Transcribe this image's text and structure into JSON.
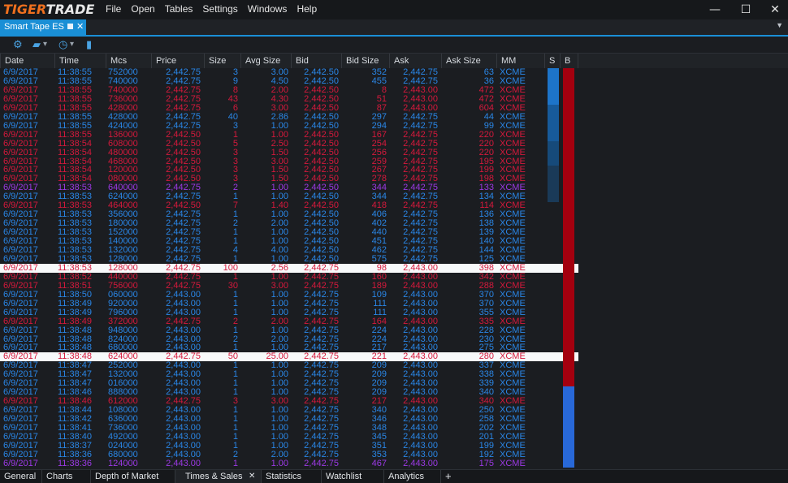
{
  "app": {
    "logo_left": "TIGER",
    "logo_right": "TRADE",
    "menu": [
      "File",
      "Open",
      "Tables",
      "Settings",
      "Windows",
      "Help"
    ],
    "window_controls": {
      "minimize": "—",
      "maximize": "☐",
      "close": "✕"
    },
    "brand_color": "#f0701e",
    "accent_color": "#1a8fd6"
  },
  "doc_tab": {
    "label": "Smart Tape ES",
    "close": "✕",
    "overflow": "▼"
  },
  "toolbar": {
    "icons": [
      "gear-icon",
      "folder-icon",
      "clock-icon",
      "trash-icon"
    ],
    "gear": "⚙",
    "folder": "▰",
    "clock": "◷",
    "trash": "▮",
    "dropdown": "▾"
  },
  "columns": [
    "Date",
    "Time",
    "Mcs",
    "Price",
    "Size",
    "Avg Size",
    "Bid",
    "Bid Size",
    "Ask",
    "Ask Size",
    "MM",
    "S",
    "B"
  ],
  "colors": {
    "buy": "#2a86e6",
    "sell": "#d5193c",
    "neutral": "#9b39e4",
    "highlight_row": "#f7f9fa"
  },
  "rows": [
    [
      "6/9/2017",
      "11:38:55",
      "752000",
      "2,442.75",
      "3",
      "3.00",
      "2,442.50",
      "352",
      "2,442.75",
      "63",
      "XCME",
      "b"
    ],
    [
      "6/9/2017",
      "11:38:55",
      "740000",
      "2,442.75",
      "9",
      "4.50",
      "2,442.50",
      "455",
      "2,442.75",
      "36",
      "XCME",
      "b"
    ],
    [
      "6/9/2017",
      "11:38:55",
      "740000",
      "2,442.75",
      "8",
      "2.00",
      "2,442.50",
      "8",
      "2,443.00",
      "472",
      "XCME",
      "s"
    ],
    [
      "6/9/2017",
      "11:38:55",
      "736000",
      "2,442.75",
      "43",
      "4.30",
      "2,442.50",
      "51",
      "2,443.00",
      "472",
      "XCME",
      "s"
    ],
    [
      "6/9/2017",
      "11:38:55",
      "428000",
      "2,442.75",
      "6",
      "3.00",
      "2,442.50",
      "87",
      "2,443.00",
      "604",
      "XCME",
      "s"
    ],
    [
      "6/9/2017",
      "11:38:55",
      "428000",
      "2,442.75",
      "40",
      "2.86",
      "2,442.50",
      "297",
      "2,442.75",
      "44",
      "XCME",
      "b"
    ],
    [
      "6/9/2017",
      "11:38:55",
      "424000",
      "2,442.75",
      "3",
      "1.00",
      "2,442.50",
      "294",
      "2,442.75",
      "99",
      "XCME",
      "b"
    ],
    [
      "6/9/2017",
      "11:38:55",
      "136000",
      "2,442.50",
      "1",
      "1.00",
      "2,442.50",
      "167",
      "2,442.75",
      "220",
      "XCME",
      "s"
    ],
    [
      "6/9/2017",
      "11:38:54",
      "608000",
      "2,442.50",
      "5",
      "2.50",
      "2,442.50",
      "254",
      "2,442.75",
      "220",
      "XCME",
      "s"
    ],
    [
      "6/9/2017",
      "11:38:54",
      "480000",
      "2,442.50",
      "3",
      "1.50",
      "2,442.50",
      "256",
      "2,442.75",
      "220",
      "XCME",
      "s"
    ],
    [
      "6/9/2017",
      "11:38:54",
      "468000",
      "2,442.50",
      "3",
      "3.00",
      "2,442.50",
      "259",
      "2,442.75",
      "195",
      "XCME",
      "s"
    ],
    [
      "6/9/2017",
      "11:38:54",
      "120000",
      "2,442.50",
      "3",
      "1.50",
      "2,442.50",
      "267",
      "2,442.75",
      "199",
      "XCME",
      "s"
    ],
    [
      "6/9/2017",
      "11:38:54",
      "080000",
      "2,442.50",
      "3",
      "1.50",
      "2,442.50",
      "278",
      "2,442.75",
      "198",
      "XCME",
      "s"
    ],
    [
      "6/9/2017",
      "11:38:53",
      "640000",
      "2,442.75",
      "2",
      "1.00",
      "2,442.50",
      "344",
      "2,442.75",
      "133",
      "XCME",
      "n"
    ],
    [
      "6/9/2017",
      "11:38:53",
      "624000",
      "2,442.75",
      "1",
      "1.00",
      "2,442.50",
      "344",
      "2,442.75",
      "134",
      "XCME",
      "b"
    ],
    [
      "6/9/2017",
      "11:38:53",
      "464000",
      "2,442.50",
      "7",
      "1.40",
      "2,442.50",
      "418",
      "2,442.75",
      "114",
      "XCME",
      "s"
    ],
    [
      "6/9/2017",
      "11:38:53",
      "356000",
      "2,442.75",
      "1",
      "1.00",
      "2,442.50",
      "406",
      "2,442.75",
      "136",
      "XCME",
      "b"
    ],
    [
      "6/9/2017",
      "11:38:53",
      "180000",
      "2,442.75",
      "2",
      "2.00",
      "2,442.50",
      "402",
      "2,442.75",
      "138",
      "XCME",
      "b"
    ],
    [
      "6/9/2017",
      "11:38:53",
      "152000",
      "2,442.75",
      "1",
      "1.00",
      "2,442.50",
      "440",
      "2,442.75",
      "139",
      "XCME",
      "b"
    ],
    [
      "6/9/2017",
      "11:38:53",
      "140000",
      "2,442.75",
      "1",
      "1.00",
      "2,442.50",
      "451",
      "2,442.75",
      "140",
      "XCME",
      "b"
    ],
    [
      "6/9/2017",
      "11:38:53",
      "132000",
      "2,442.75",
      "4",
      "4.00",
      "2,442.50",
      "462",
      "2,442.75",
      "144",
      "XCME",
      "b"
    ],
    [
      "6/9/2017",
      "11:38:53",
      "128000",
      "2,442.75",
      "1",
      "1.00",
      "2,442.50",
      "575",
      "2,442.75",
      "125",
      "XCME",
      "b"
    ],
    [
      "6/9/2017",
      "11:38:53",
      "128000",
      "2,442.75",
      "100",
      "2.56",
      "2,442.75",
      "98",
      "2,443.00",
      "398",
      "XCME",
      "hl"
    ],
    [
      "6/9/2017",
      "11:38:52",
      "440000",
      "2,442.75",
      "1",
      "1.00",
      "2,442.75",
      "160",
      "2,443.00",
      "342",
      "XCME",
      "s"
    ],
    [
      "6/9/2017",
      "11:38:51",
      "756000",
      "2,442.75",
      "30",
      "3.00",
      "2,442.75",
      "189",
      "2,443.00",
      "288",
      "XCME",
      "s"
    ],
    [
      "6/9/2017",
      "11:38:50",
      "060000",
      "2,443.00",
      "1",
      "1.00",
      "2,442.75",
      "109",
      "2,443.00",
      "370",
      "XCME",
      "b"
    ],
    [
      "6/9/2017",
      "11:38:49",
      "920000",
      "2,443.00",
      "1",
      "1.00",
      "2,442.75",
      "111",
      "2,443.00",
      "370",
      "XCME",
      "b"
    ],
    [
      "6/9/2017",
      "11:38:49",
      "796000",
      "2,443.00",
      "1",
      "1.00",
      "2,442.75",
      "111",
      "2,443.00",
      "355",
      "XCME",
      "b"
    ],
    [
      "6/9/2017",
      "11:38:49",
      "372000",
      "2,442.75",
      "2",
      "2.00",
      "2,442.75",
      "164",
      "2,443.00",
      "335",
      "XCME",
      "s"
    ],
    [
      "6/9/2017",
      "11:38:48",
      "948000",
      "2,443.00",
      "1",
      "1.00",
      "2,442.75",
      "224",
      "2,443.00",
      "228",
      "XCME",
      "b"
    ],
    [
      "6/9/2017",
      "11:38:48",
      "824000",
      "2,443.00",
      "2",
      "2.00",
      "2,442.75",
      "224",
      "2,443.00",
      "230",
      "XCME",
      "b"
    ],
    [
      "6/9/2017",
      "11:38:48",
      "680000",
      "2,443.00",
      "1",
      "1.00",
      "2,442.75",
      "217",
      "2,443.00",
      "275",
      "XCME",
      "b"
    ],
    [
      "6/9/2017",
      "11:38:48",
      "624000",
      "2,442.75",
      "50",
      "25.00",
      "2,442.75",
      "221",
      "2,443.00",
      "280",
      "XCME",
      "hl"
    ],
    [
      "6/9/2017",
      "11:38:47",
      "252000",
      "2,443.00",
      "1",
      "1.00",
      "2,442.75",
      "209",
      "2,443.00",
      "337",
      "XCME",
      "b"
    ],
    [
      "6/9/2017",
      "11:38:47",
      "132000",
      "2,443.00",
      "1",
      "1.00",
      "2,442.75",
      "209",
      "2,443.00",
      "338",
      "XCME",
      "b"
    ],
    [
      "6/9/2017",
      "11:38:47",
      "016000",
      "2,443.00",
      "1",
      "1.00",
      "2,442.75",
      "209",
      "2,443.00",
      "339",
      "XCME",
      "b"
    ],
    [
      "6/9/2017",
      "11:38:46",
      "888000",
      "2,443.00",
      "1",
      "1.00",
      "2,442.75",
      "209",
      "2,443.00",
      "340",
      "XCME",
      "b"
    ],
    [
      "6/9/2017",
      "11:38:46",
      "612000",
      "2,442.75",
      "3",
      "3.00",
      "2,442.75",
      "217",
      "2,443.00",
      "340",
      "XCME",
      "s"
    ],
    [
      "6/9/2017",
      "11:38:44",
      "108000",
      "2,443.00",
      "1",
      "1.00",
      "2,442.75",
      "340",
      "2,443.00",
      "250",
      "XCME",
      "b"
    ],
    [
      "6/9/2017",
      "11:38:42",
      "636000",
      "2,443.00",
      "1",
      "1.00",
      "2,442.75",
      "346",
      "2,443.00",
      "258",
      "XCME",
      "b"
    ],
    [
      "6/9/2017",
      "11:38:41",
      "736000",
      "2,443.00",
      "1",
      "1.00",
      "2,442.75",
      "348",
      "2,443.00",
      "202",
      "XCME",
      "b"
    ],
    [
      "6/9/2017",
      "11:38:40",
      "492000",
      "2,443.00",
      "1",
      "1.00",
      "2,442.75",
      "345",
      "2,443.00",
      "201",
      "XCME",
      "b"
    ],
    [
      "6/9/2017",
      "11:38:37",
      "024000",
      "2,443.00",
      "1",
      "1.00",
      "2,442.75",
      "351",
      "2,443.00",
      "199",
      "XCME",
      "b"
    ],
    [
      "6/9/2017",
      "11:38:36",
      "680000",
      "2,443.00",
      "2",
      "2.00",
      "2,442.75",
      "353",
      "2,443.00",
      "192",
      "XCME",
      "b"
    ],
    [
      "6/9/2017",
      "11:38:36",
      "124000",
      "2,443.00",
      "1",
      "1.00",
      "2,442.75",
      "467",
      "2,443.00",
      "175",
      "XCME",
      "n"
    ]
  ],
  "bottom_tabs": {
    "general": "General",
    "charts": "Charts",
    "dom": "Depth of Market",
    "ts": "Times & Sales",
    "ts_close": "✕",
    "stats": "Statistics",
    "watch": "Watchlist",
    "analytics": "Analytics",
    "add": "+"
  }
}
